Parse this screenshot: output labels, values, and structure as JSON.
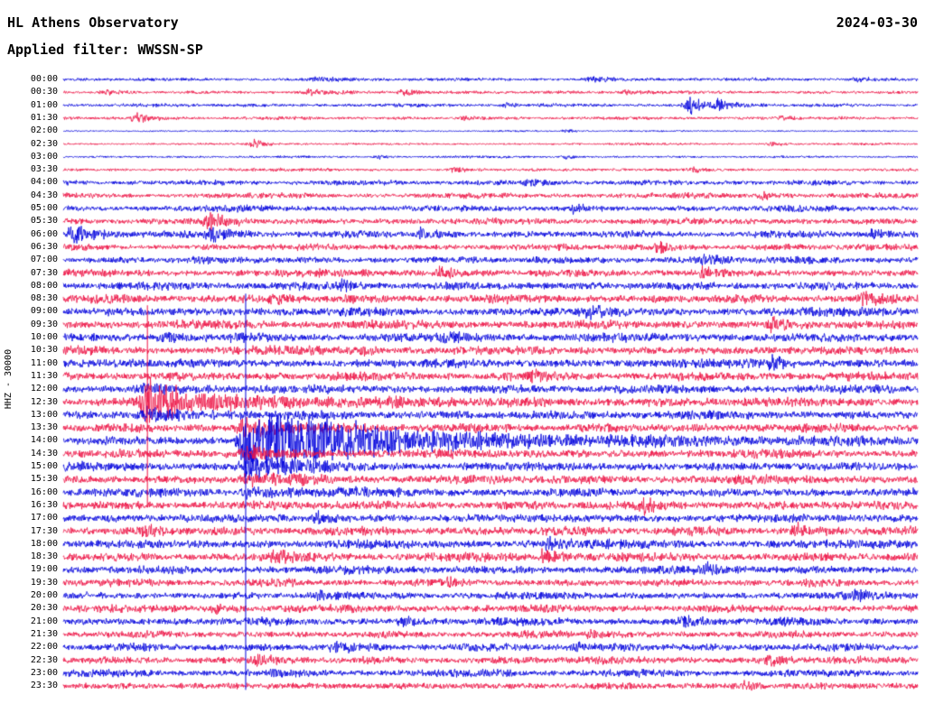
{
  "header": {
    "title": "HL Athens Observatory",
    "filter_label": "Applied filter: WWSSN-SP",
    "date": "2024-03-30"
  },
  "chart_data": {
    "type": "line",
    "subtype": "helicorder-day-plot",
    "title": "HL Athens Observatory",
    "date": "2024-03-30",
    "filter": "WWSSN-SP",
    "ylabel": "HHZ - 30000",
    "xlabel": "",
    "row_interval_minutes": 30,
    "grid": false,
    "legend": "none",
    "trace_color_pattern": "alternating blue (even rows) / red (odd rows)",
    "colors": {
      "blue_trace": "#0000dd",
      "red_trace": "#ee1144",
      "background": "#ffffff",
      "text": "#000000"
    },
    "notable_events": [
      {
        "row": "01:00",
        "position": 0.735,
        "description": "small burst"
      },
      {
        "row": "12:30",
        "position": 0.099,
        "description": "moderate event with coda, clipped spike (red vertical line)"
      },
      {
        "row": "14:00",
        "position": 0.214,
        "description": "large clipped event, coda visible on 14:30-16:00 rows (blue vertical line)"
      }
    ],
    "clip_lines": [
      {
        "t": 0.0985,
        "color": "red",
        "from_row": 17.5,
        "to_row": 33.0
      },
      {
        "t": 0.2135,
        "color": "blue",
        "from_row": 16.6,
        "to_row": 47.3
      }
    ],
    "rows": [
      {
        "label": "00:00",
        "noise": 1.4,
        "events": [
          [
            0.3,
            2,
            25
          ],
          [
            0.62,
            2,
            20
          ],
          [
            0.93,
            2.5,
            20
          ]
        ]
      },
      {
        "label": "00:30",
        "noise": 1.4,
        "events": [
          [
            0.05,
            2,
            12
          ],
          [
            0.29,
            2.5,
            15
          ],
          [
            0.4,
            2.5,
            15
          ],
          [
            0.66,
            2.5,
            15
          ]
        ]
      },
      {
        "label": "01:00",
        "noise": 1.5,
        "events": [
          [
            0.52,
            2,
            10
          ],
          [
            0.735,
            10,
            12
          ],
          [
            0.768,
            5,
            18
          ]
        ]
      },
      {
        "label": "01:30",
        "noise": 1.4,
        "events": [
          [
            0.085,
            4.5,
            14
          ],
          [
            0.47,
            2,
            10
          ],
          [
            0.84,
            2,
            12
          ]
        ]
      },
      {
        "label": "02:00",
        "noise": 0.7,
        "events": [
          [
            0.59,
            1.5,
            10
          ]
        ]
      },
      {
        "label": "02:30",
        "noise": 1.0,
        "events": [
          [
            0.225,
            3.5,
            12
          ],
          [
            0.83,
            2,
            15
          ]
        ]
      },
      {
        "label": "03:00",
        "noise": 1.0,
        "events": [
          [
            0.37,
            1.5,
            10
          ],
          [
            0.59,
            1.8,
            10
          ]
        ]
      },
      {
        "label": "03:30",
        "noise": 1.3,
        "events": [
          [
            0.46,
            2.5,
            12
          ],
          [
            0.74,
            2,
            10
          ]
        ]
      },
      {
        "label": "04:00",
        "noise": 2.2,
        "events": [
          [
            0.55,
            3,
            12
          ]
        ]
      },
      {
        "label": "04:30",
        "noise": 2.2,
        "events": [
          [
            0.82,
            3.5,
            12
          ]
        ]
      },
      {
        "label": "05:00",
        "noise": 2.6,
        "events": [
          [
            0.6,
            3.5,
            12
          ]
        ]
      },
      {
        "label": "05:30",
        "noise": 2.8,
        "events": [
          [
            0.174,
            7,
            18
          ]
        ]
      },
      {
        "label": "06:00",
        "noise": 3.0,
        "events": [
          [
            0.012,
            8,
            25
          ],
          [
            0.175,
            5,
            20
          ],
          [
            0.42,
            5,
            15
          ],
          [
            0.95,
            4.5,
            15
          ]
        ]
      },
      {
        "label": "06:30",
        "noise": 2.8,
        "events": [
          [
            0.7,
            4,
            12
          ]
        ]
      },
      {
        "label": "07:00",
        "noise": 3.0,
        "events": [
          [
            0.75,
            4.5,
            15
          ]
        ]
      },
      {
        "label": "07:30",
        "noise": 3.2,
        "events": [
          [
            0.445,
            6,
            15
          ],
          [
            0.75,
            4,
            15
          ]
        ]
      },
      {
        "label": "08:00",
        "noise": 3.6,
        "events": [
          [
            0.33,
            4,
            12
          ]
        ]
      },
      {
        "label": "08:30",
        "noise": 3.6,
        "events": [
          [
            0.25,
            4,
            12
          ],
          [
            0.94,
            4,
            12
          ]
        ]
      },
      {
        "label": "09:00",
        "noise": 3.8,
        "events": [
          [
            0.62,
            4,
            12
          ]
        ]
      },
      {
        "label": "09:30",
        "noise": 3.8,
        "events": [
          [
            0.83,
            5,
            15
          ]
        ]
      },
      {
        "label": "10:00",
        "noise": 3.8,
        "events": [
          [
            0.12,
            4,
            12
          ],
          [
            0.45,
            4,
            12
          ]
        ]
      },
      {
        "label": "10:30",
        "noise": 3.8,
        "events": [
          [
            0.35,
            4,
            12
          ]
        ]
      },
      {
        "label": "11:00",
        "noise": 3.8,
        "events": [
          [
            0.83,
            5,
            15
          ]
        ]
      },
      {
        "label": "11:30",
        "noise": 3.8,
        "events": [
          [
            0.55,
            4,
            12
          ]
        ]
      },
      {
        "label": "12:00",
        "noise": 3.8,
        "events": [
          [
            0.099,
            3,
            20
          ]
        ]
      },
      {
        "label": "12:30",
        "noise": 3.8,
        "events": [
          [
            0.0985,
            15,
            30
          ],
          [
            0.105,
            8,
            150
          ]
        ]
      },
      {
        "label": "13:00",
        "noise": 3.8,
        "events": [
          [
            0.1,
            4.5,
            60
          ]
        ]
      },
      {
        "label": "13:30",
        "noise": 3.8,
        "events": [
          [
            0.213,
            8,
            40
          ]
        ]
      },
      {
        "label": "14:00",
        "noise": 3.8,
        "events": [
          [
            0.2135,
            28,
            55
          ],
          [
            0.245,
            14,
            90
          ],
          [
            0.3,
            8,
            260
          ]
        ]
      },
      {
        "label": "14:30",
        "noise": 3.8,
        "events": [
          [
            0.215,
            5,
            40
          ]
        ]
      },
      {
        "label": "15:00",
        "noise": 3.8,
        "events": [
          [
            0.215,
            11,
            45
          ]
        ]
      },
      {
        "label": "15:30",
        "noise": 3.8,
        "events": [
          [
            0.216,
            4,
            40
          ]
        ]
      },
      {
        "label": "16:00",
        "noise": 3.8,
        "events": [
          [
            0.216,
            3.5,
            50
          ]
        ]
      },
      {
        "label": "16:30",
        "noise": 3.8,
        "events": [
          [
            0.68,
            5,
            15
          ]
        ]
      },
      {
        "label": "17:00",
        "noise": 3.8,
        "events": [
          [
            0.3,
            4,
            12
          ]
        ]
      },
      {
        "label": "17:30",
        "noise": 3.8,
        "events": [
          [
            0.1,
            4,
            12
          ],
          [
            0.86,
            5,
            15
          ]
        ]
      },
      {
        "label": "18:00",
        "noise": 3.8,
        "events": [
          [
            0.57,
            4,
            12
          ]
        ]
      },
      {
        "label": "18:30",
        "noise": 3.8,
        "events": [
          [
            0.25,
            4,
            12
          ],
          [
            0.565,
            7,
            15
          ]
        ]
      },
      {
        "label": "19:00",
        "noise": 3.6,
        "events": [
          [
            0.755,
            5,
            15
          ]
        ]
      },
      {
        "label": "19:30",
        "noise": 3.2,
        "events": [
          [
            0.45,
            3,
            12
          ]
        ]
      },
      {
        "label": "20:00",
        "noise": 3.2,
        "events": [
          [
            0.3,
            3,
            12
          ],
          [
            0.93,
            4,
            15
          ]
        ]
      },
      {
        "label": "20:30",
        "noise": 3.4,
        "events": [
          [
            0.18,
            3,
            12
          ]
        ]
      },
      {
        "label": "21:00",
        "noise": 3.4,
        "events": [
          [
            0.4,
            3,
            12
          ],
          [
            0.725,
            6,
            15
          ]
        ]
      },
      {
        "label": "21:30",
        "noise": 3.0,
        "events": [
          [
            0.62,
            3,
            12
          ]
        ]
      },
      {
        "label": "22:00",
        "noise": 3.4,
        "events": [
          [
            0.32,
            4,
            12
          ],
          [
            0.6,
            4,
            12
          ]
        ]
      },
      {
        "label": "22:30",
        "noise": 3.2,
        "events": [
          [
            0.23,
            4,
            12
          ],
          [
            0.83,
            4,
            15
          ]
        ]
      },
      {
        "label": "23:00",
        "noise": 3.0,
        "events": [
          [
            0.5,
            3,
            12
          ]
        ]
      },
      {
        "label": "23:30",
        "noise": 3.0,
        "events": [
          [
            0.8,
            3,
            12
          ]
        ]
      }
    ]
  }
}
